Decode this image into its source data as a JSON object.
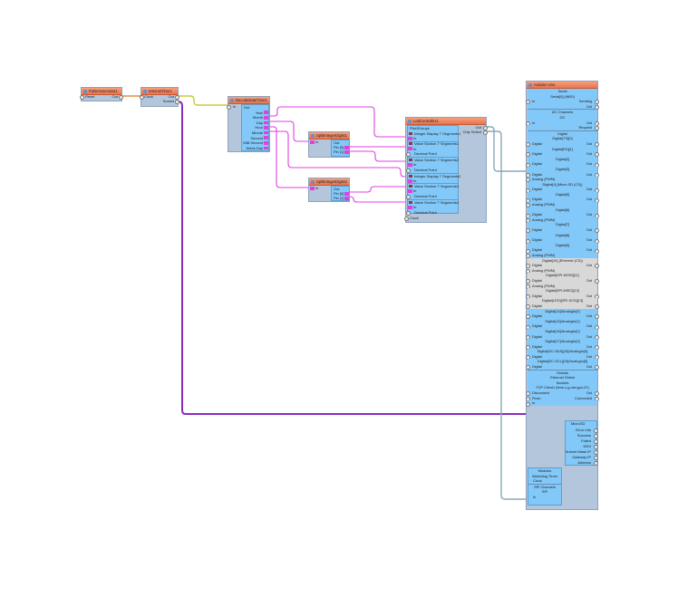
{
  "colors": {
    "node_header": "#e8744e",
    "node_body": "#b4c6dc",
    "pin_panel": "#82c8f8",
    "wire_integer": "#e040e0",
    "wire_socket": "#8a2bc0",
    "wire_clock": "#e88a3c",
    "wire_datetime": "#c8c840",
    "wire_digital": "#8aa8b8"
  },
  "pulse": {
    "title": "PulseGenerator1",
    "reset": "Reset",
    "out": "Out"
  },
  "internet": {
    "title": "InternetTime1",
    "clock": "Clock",
    "out": "Out",
    "socket": "Socket"
  },
  "decode": {
    "title": "DecodeDateTime1",
    "in": "In",
    "out": "Out",
    "pins": [
      "Year",
      "Month",
      "Day",
      "Hour",
      "Minute",
      "Second",
      "Milli Second",
      "Week Day"
    ]
  },
  "split1": {
    "title": "SplitIntegerDigits1",
    "in": "In",
    "out": "Out",
    "pin0": "Pin [0]",
    "pin1": "Pin [1]"
  },
  "split2": {
    "title": "SplitIntegerDigits2",
    "in": "In",
    "out": "Out",
    "pin0": "Pin [0]",
    "pin1": "Pin [1]"
  },
  "led": {
    "title": "LedController1",
    "pixel_groups": "PixelGroups",
    "out": "Out",
    "chip_select": "Chip Select",
    "clock": "Clock",
    "items": [
      "Integer Display 7 Segments1",
      "In",
      "Value Section 7 Segments1",
      "In",
      "Decimal Point",
      "Value Section 7 Segments2",
      "In",
      "Decimal Point",
      "Integer Display 7 Segments2",
      "In",
      "Value Section 7 Segments3",
      "In",
      "Decimal Point",
      "Value Section 7 Segments4",
      "In",
      "Decimal Point"
    ]
  },
  "arduino": {
    "title": "Arduino Uno",
    "rows": [
      {
        "t": "title",
        "text": "Serial"
      },
      {
        "t": "title",
        "text": "Serial[0] (9600)"
      },
      {
        "t": "pin",
        "l": "In",
        "r": "Sending"
      },
      {
        "t": "pin",
        "l": "",
        "r": "Out"
      },
      {
        "t": "title",
        "text": "I2C Channels",
        "sep": true
      },
      {
        "t": "title",
        "text": "I2C"
      },
      {
        "t": "pin",
        "l": "In",
        "r": "Out"
      },
      {
        "t": "pin",
        "l": "",
        "r": "Request"
      },
      {
        "t": "title",
        "text": "Digital",
        "sep": true
      },
      {
        "t": "title",
        "text": "Digital[TX][0]"
      },
      {
        "t": "pin",
        "l": "Digital",
        "r": "Out"
      },
      {
        "t": "title",
        "text": "Digital[RX][1]"
      },
      {
        "t": "pin",
        "l": "Digital",
        "r": "Out"
      },
      {
        "t": "title",
        "text": "Digital[2]"
      },
      {
        "t": "pin",
        "l": "Digital",
        "r": "Out"
      },
      {
        "t": "title",
        "text": "Digital[3]"
      },
      {
        "t": "pin",
        "l": "Digital",
        "r": "Out"
      },
      {
        "t": "pin",
        "l": "Analog (PWM)",
        "r": ""
      },
      {
        "t": "title",
        "text": "Digital[4] (Micro SD (CS))"
      },
      {
        "t": "pin",
        "l": "Digital",
        "r": "Out"
      },
      {
        "t": "title",
        "text": "Digital[5]"
      },
      {
        "t": "pin",
        "l": "Digital",
        "r": "Out"
      },
      {
        "t": "pin",
        "l": "Analog (PWM)",
        "r": ""
      },
      {
        "t": "title",
        "text": "Digital[6]"
      },
      {
        "t": "pin",
        "l": "Digital",
        "r": "Out"
      },
      {
        "t": "pin",
        "l": "Analog (PWM)",
        "r": ""
      },
      {
        "t": "title",
        "text": "Digital[7]"
      },
      {
        "t": "pin",
        "l": "Digital",
        "r": "Out"
      },
      {
        "t": "title",
        "text": "Digital[8]"
      },
      {
        "t": "pin",
        "l": "Digital",
        "r": "Out"
      },
      {
        "t": "title",
        "text": "Digital[9]"
      },
      {
        "t": "pin",
        "l": "Digital",
        "r": "Out"
      },
      {
        "t": "pin",
        "l": "Analog (PWM)",
        "r": ""
      },
      {
        "t": "title",
        "text": "Digital[10] (Ethernet (CS))",
        "g": true
      },
      {
        "t": "pin",
        "l": "Digital",
        "r": "Out",
        "g": true
      },
      {
        "t": "pin",
        "l": "Analog (PWM)",
        "r": "",
        "g": true
      },
      {
        "t": "title",
        "text": "Digital[SPI-MOSI][11]",
        "g": true
      },
      {
        "t": "pin",
        "l": "Digital",
        "r": "Out",
        "g": true
      },
      {
        "t": "pin",
        "l": "Analog (PWM)",
        "r": "",
        "g": true
      },
      {
        "t": "title",
        "text": "Digital[SPI-MISO][12]",
        "g": true
      },
      {
        "t": "pin",
        "l": "Digital",
        "r": "Out",
        "g": true
      },
      {
        "t": "title",
        "text": "Digital(LED)[SPI-SCK][13]",
        "g": true
      },
      {
        "t": "pin",
        "l": "Digital",
        "r": "Out",
        "g": true
      },
      {
        "t": "title",
        "text": "Digital[14]/AnalogIn[0]"
      },
      {
        "t": "pin",
        "l": "Digital",
        "r": "Out"
      },
      {
        "t": "title",
        "text": "Digital[15]/AnalogIn[1]"
      },
      {
        "t": "pin",
        "l": "Digital",
        "r": "Out"
      },
      {
        "t": "title",
        "text": "Digital[16]/AnalogIn[2]"
      },
      {
        "t": "pin",
        "l": "Digital",
        "r": "Out"
      },
      {
        "t": "title",
        "text": "Digital[17]/AnalogIn[3]"
      },
      {
        "t": "pin",
        "l": "Digital",
        "r": "Out"
      },
      {
        "t": "title",
        "text": "Digital[I2C-SDA][18]/AnalogIn[4]"
      },
      {
        "t": "pin",
        "l": "Digital",
        "r": "Out"
      },
      {
        "t": "title",
        "text": "Digital[I2C-SCL][19]/AnalogIn[5]"
      },
      {
        "t": "pin",
        "l": "Digital",
        "r": "Out"
      },
      {
        "t": "title",
        "text": "Shields",
        "sep": true
      },
      {
        "t": "title",
        "text": "Ethernet Shield"
      },
      {
        "t": "title",
        "text": "Sockets"
      },
      {
        "t": "title",
        "text": "TCP Client1 (time-c-g.nist.gov:37)"
      },
      {
        "t": "pin",
        "l": "Disconnect",
        "r": "Out"
      },
      {
        "t": "pin",
        "l": "Flush",
        "r": "Connected"
      },
      {
        "t": "pin",
        "l": "In",
        "r": ""
      }
    ],
    "microsd": {
      "title": "MicroSD",
      "pins": [
        "Error Info",
        "Success",
        "Failed",
        "DNS",
        "Subnet Mask IP",
        "Gateway IP",
        "Address"
      ]
    },
    "modules": {
      "title": "Modules",
      "watchdog": "Watchdog Timer",
      "clock": "Clock",
      "spi_channels": "SPI Channels",
      "spi": "SPI",
      "in": "In"
    }
  }
}
